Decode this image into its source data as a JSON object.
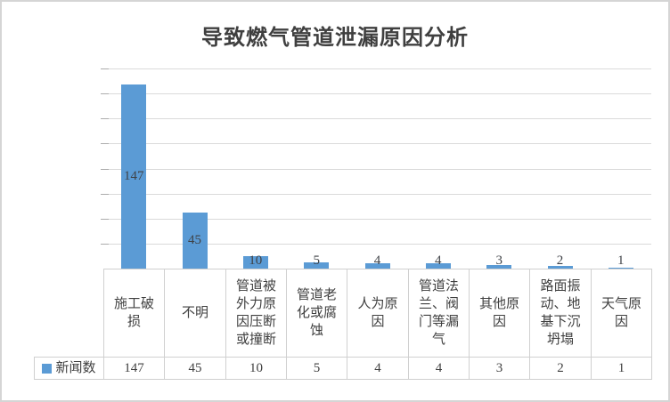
{
  "title": "导致燃气管道泄漏原因分析",
  "legend": {
    "label": "新闻数"
  },
  "chart_data": {
    "type": "bar",
    "title": "导致燃气管道泄漏原因分析",
    "categories": [
      "施工破损",
      "不明",
      "管道被外力原因压断或撞断",
      "管道老化或腐蚀",
      "人为原因",
      "管道法兰、阀门等漏气",
      "其他原因",
      "路面振动、地基下沉坍塌",
      "天气原因"
    ],
    "series": [
      {
        "name": "新闻数",
        "values": [
          147,
          45,
          10,
          5,
          4,
          4,
          3,
          2,
          1
        ]
      }
    ],
    "xlabel": "",
    "ylabel": "",
    "ylim": [
      0,
      160
    ],
    "grid_step": 20,
    "grid": true,
    "data_labels": "center",
    "legend_position": "table-row-left",
    "axis_labels_hidden": true
  },
  "colors": {
    "bar": "#5b9bd5",
    "gridline": "#dadada",
    "tick": "#acacac",
    "table_border": "#d0d0d0",
    "title_text": "#3f3f3f",
    "body_text": "#404040"
  }
}
